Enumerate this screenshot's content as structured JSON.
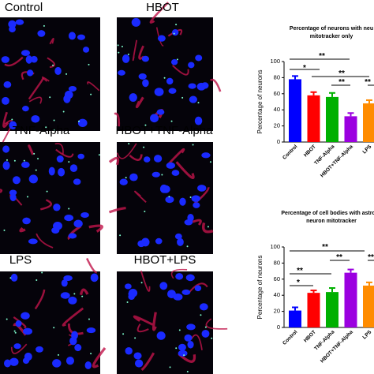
{
  "panels": [
    "Control",
    "HBOT",
    "TNF-Alpha",
    "HBOT+TNF-Alpha",
    "LPS",
    "HBOT+LPS"
  ],
  "chart_data": [
    {
      "type": "bar",
      "title": [
        "Percentage of neurons with neu",
        "mitotracker only"
      ],
      "y_label": "Percentage of neurons",
      "categories": [
        "Control",
        "HBOT",
        "TNF-Alpha",
        "HBOT+TNF-Alpha",
        "LPS"
      ],
      "values": [
        78,
        58,
        56,
        32,
        48
      ],
      "errors": [
        4,
        4,
        5,
        4,
        4
      ],
      "colors": [
        "#0000ff",
        "#ff0000",
        "#00b000",
        "#9b00e0",
        "#ff8c00"
      ],
      "ylim": [
        0,
        100
      ],
      "yticks": [
        0,
        20,
        40,
        60,
        80,
        100
      ],
      "annotations": [
        "*",
        "**",
        "**",
        "**",
        "**"
      ]
    },
    {
      "type": "bar",
      "title": [
        "Percentage of cell bodies with astrocy",
        "neuron mitotracker"
      ],
      "y_label": "Percentage of neurons",
      "categories": [
        "Control",
        "HBOT",
        "TNF-Alpha",
        "HBOT+TNF-Alpha",
        "LPS"
      ],
      "values": [
        21,
        43,
        44,
        68,
        52
      ],
      "errors": [
        4,
        3,
        5,
        4,
        4
      ],
      "colors": [
        "#0000ff",
        "#ff0000",
        "#00b000",
        "#9b00e0",
        "#ff8c00"
      ],
      "ylim": [
        0,
        100
      ],
      "yticks": [
        0,
        20,
        40,
        60,
        80,
        100
      ],
      "annotations": [
        "**",
        "*",
        "**",
        "**",
        "**"
      ]
    }
  ]
}
